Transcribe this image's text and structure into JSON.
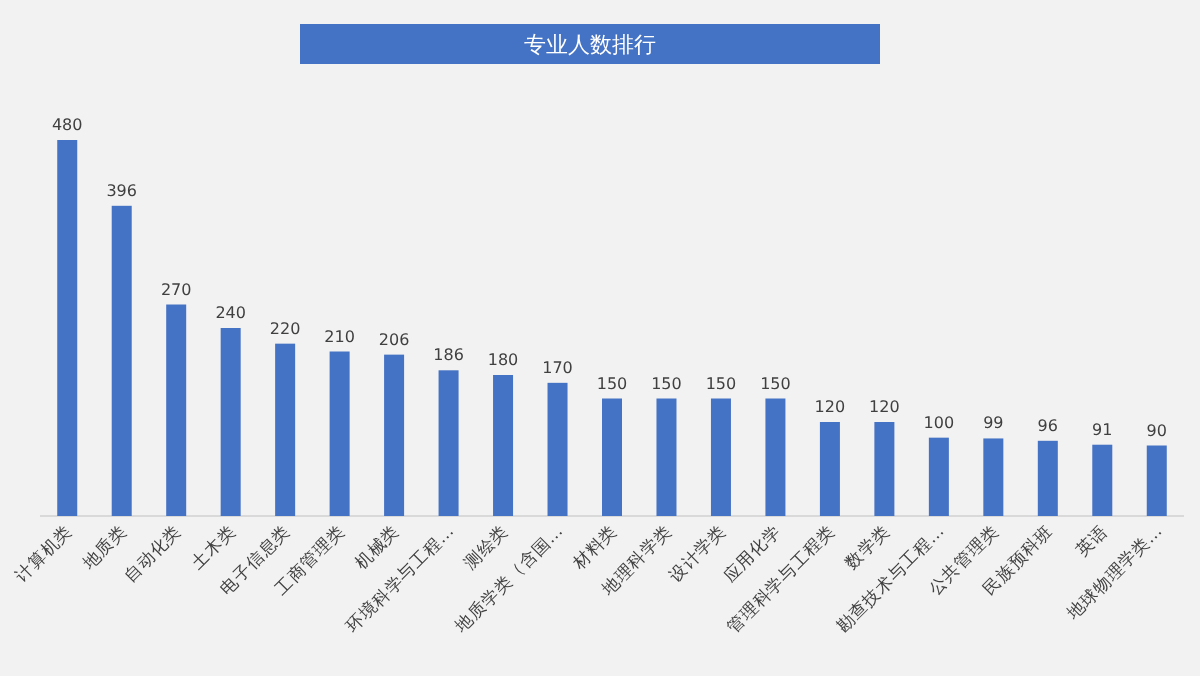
{
  "chart_data": {
    "type": "bar",
    "title": "专业人数排行",
    "categories": [
      "计算机类",
      "地质类",
      "自动化类",
      "土木类",
      "电子信息类",
      "工商管理类",
      "机械类",
      "环境科学与工程…",
      "测绘类",
      "地质学类（含国…",
      "材料类",
      "地理科学类",
      "设计学类",
      "应用化学",
      "管理科学与工程类",
      "数学类",
      "勘查技术与工程…",
      "公共管理类",
      "民族预科班",
      "英语",
      "地球物理学类…"
    ],
    "values": [
      480,
      396,
      270,
      240,
      220,
      210,
      206,
      186,
      180,
      170,
      150,
      150,
      150,
      150,
      120,
      120,
      100,
      99,
      96,
      91,
      90
    ],
    "color": "#4472c4",
    "data_labels": true
  }
}
